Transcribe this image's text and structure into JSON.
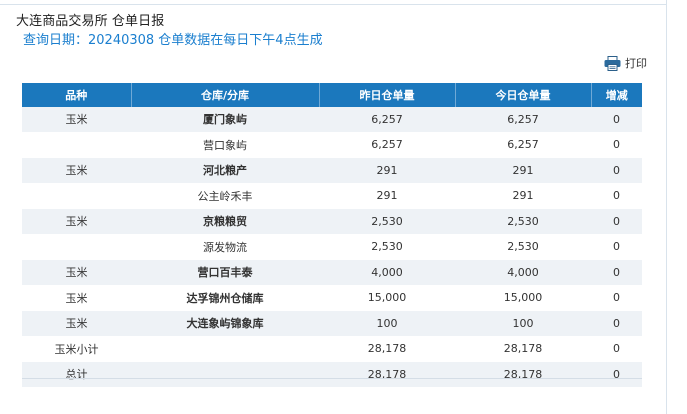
{
  "header": {
    "title": "大连商品交易所 仓单日报",
    "query_date_line": "查询日期：20240308 仓单数据在每日下午4点生成"
  },
  "toolbar": {
    "print_label": "打印",
    "print_icon": "printer-icon"
  },
  "table": {
    "columns": [
      "品种",
      "仓库/分库",
      "昨日仓单量",
      "今日仓单量",
      "增减"
    ],
    "rows": [
      {
        "variety": "玉米",
        "warehouse": "厦门象屿",
        "yesterday": "6,257",
        "today": "6,257",
        "change": "0"
      },
      {
        "variety": "",
        "warehouse": "营口象屿",
        "yesterday": "6,257",
        "today": "6,257",
        "change": "0"
      },
      {
        "variety": "玉米",
        "warehouse": "河北粮产",
        "yesterday": "291",
        "today": "291",
        "change": "0"
      },
      {
        "variety": "",
        "warehouse": "公主岭禾丰",
        "yesterday": "291",
        "today": "291",
        "change": "0"
      },
      {
        "variety": "玉米",
        "warehouse": "京粮粮贸",
        "yesterday": "2,530",
        "today": "2,530",
        "change": "0"
      },
      {
        "variety": "",
        "warehouse": "源发物流",
        "yesterday": "2,530",
        "today": "2,530",
        "change": "0"
      },
      {
        "variety": "玉米",
        "warehouse": "营口百丰泰",
        "yesterday": "4,000",
        "today": "4,000",
        "change": "0"
      },
      {
        "variety": "玉米",
        "warehouse": "达孚锦州仓储库",
        "yesterday": "15,000",
        "today": "15,000",
        "change": "0"
      },
      {
        "variety": "玉米",
        "warehouse": "大连象屿锦象库",
        "yesterday": "100",
        "today": "100",
        "change": "0"
      },
      {
        "variety": "玉米小计",
        "warehouse": "",
        "yesterday": "28,178",
        "today": "28,178",
        "change": "0"
      },
      {
        "variety": "总计",
        "warehouse": "",
        "yesterday": "28,178",
        "today": "28,178",
        "change": "0"
      }
    ]
  },
  "colors": {
    "header_bg": "#1b78bd",
    "accent_text": "#1b7fcf",
    "row_alt": "#eef2f6"
  }
}
